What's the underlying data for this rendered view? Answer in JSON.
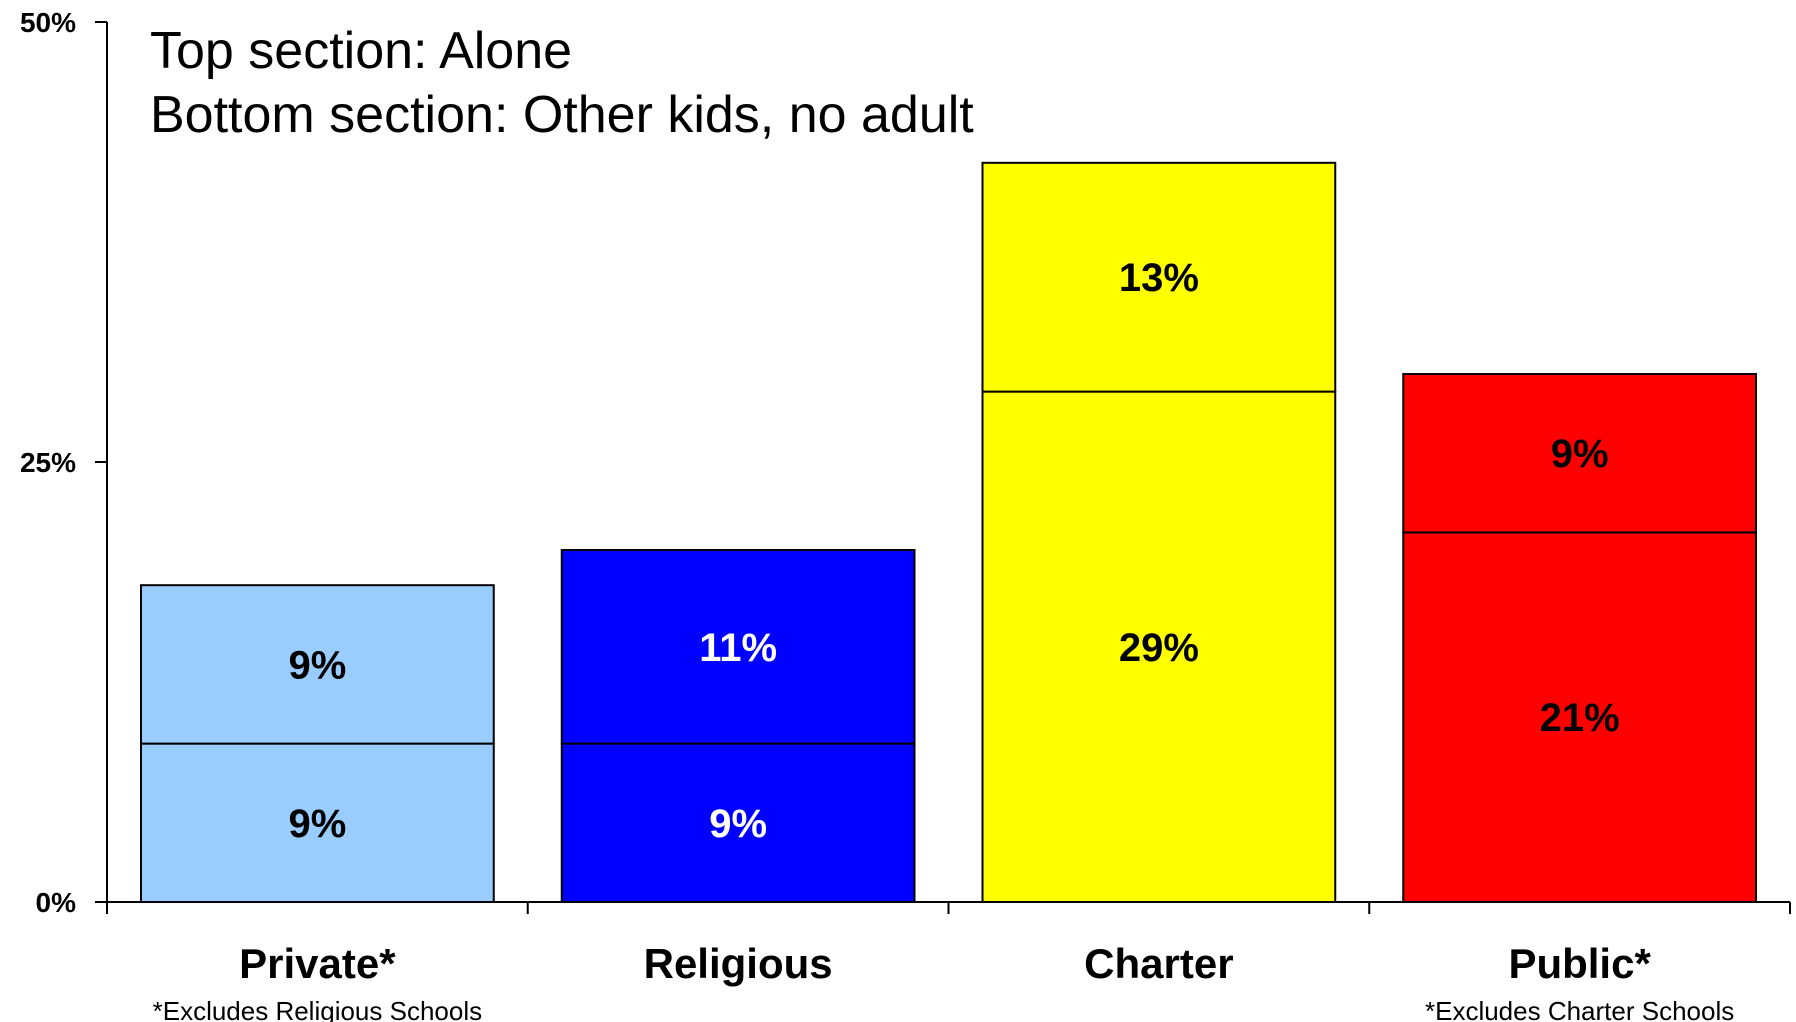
{
  "chart_data": {
    "type": "bar",
    "stacked": true,
    "annotations": [
      "Top section: Alone",
      "Bottom section: Other kids, no adult"
    ],
    "y_ticks": [
      "0%",
      "25%",
      "50%"
    ],
    "ylim": [
      0,
      50
    ],
    "grid": false,
    "legend": "none",
    "categories": [
      {
        "label": "Private*",
        "footnote": "*Excludes Religious Schools",
        "color": "#99ccff",
        "label_color": "#000000",
        "bottom": 9,
        "bottom_label": "9%",
        "top": 9,
        "top_label": "9%"
      },
      {
        "label": "Religious",
        "footnote": "",
        "color": "#0000ff",
        "label_color": "#ffffff",
        "bottom": 9,
        "bottom_label": "9%",
        "top": 11,
        "top_label": "11%"
      },
      {
        "label": "Charter",
        "footnote": "",
        "color": "#ffff00",
        "label_color": "#000000",
        "bottom": 29,
        "bottom_label": "29%",
        "top": 13,
        "top_label": "13%"
      },
      {
        "label": "Public*",
        "footnote": "*Excludes Charter Schools",
        "color": "#ff0000",
        "label_color": "#000000",
        "bottom": 21,
        "bottom_label": "21%",
        "top": 9,
        "top_label": "9%"
      }
    ]
  }
}
